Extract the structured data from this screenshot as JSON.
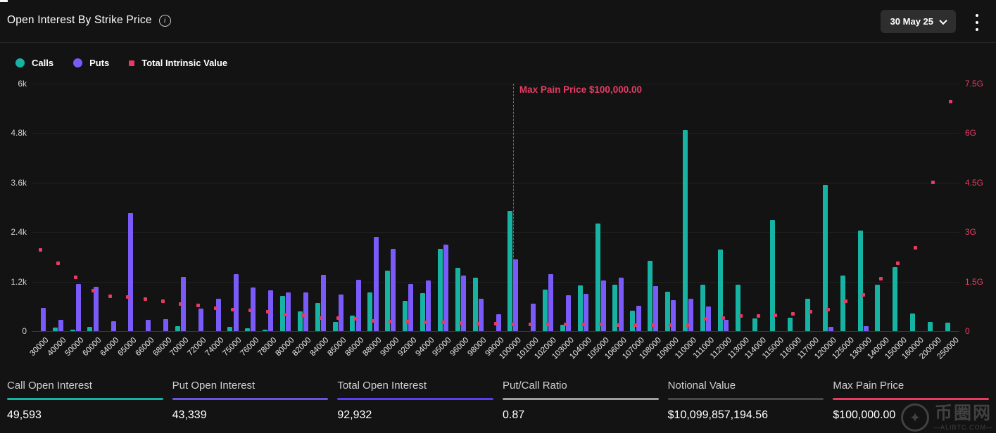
{
  "header": {
    "title": "Open Interest By Strike Price",
    "date_label": "30 May 25"
  },
  "legend": [
    {
      "label": "Calls",
      "color": "#16b2a2",
      "shape": "circle"
    },
    {
      "label": "Puts",
      "color": "#7a5af8",
      "shape": "circle"
    },
    {
      "label": "Total Intrinsic Value",
      "color": "#e63c63",
      "shape": "square"
    }
  ],
  "chart_data": {
    "type": "bar",
    "title": "Open Interest By Strike Price",
    "grid": true,
    "legend_position": "top-left",
    "categories": [
      "30000",
      "40000",
      "50000",
      "60000",
      "64000",
      "65000",
      "66000",
      "68000",
      "70000",
      "72000",
      "74000",
      "75000",
      "76000",
      "78000",
      "80000",
      "82000",
      "84000",
      "85000",
      "86000",
      "88000",
      "90000",
      "92000",
      "94000",
      "95000",
      "96000",
      "98000",
      "99000",
      "100000",
      "101000",
      "102000",
      "103000",
      "104000",
      "105000",
      "106000",
      "107000",
      "108000",
      "109000",
      "110000",
      "111000",
      "112000",
      "113000",
      "114000",
      "115000",
      "116000",
      "117000",
      "120000",
      "125000",
      "130000",
      "140000",
      "150000",
      "160000",
      "200000",
      "250000"
    ],
    "series": [
      {
        "name": "Calls",
        "type": "bar",
        "axis": "left",
        "color": "#16b2a2",
        "values": [
          0,
          85,
          30,
          100,
          0,
          0,
          0,
          0,
          120,
          0,
          0,
          110,
          60,
          30,
          850,
          480,
          690,
          215,
          370,
          930,
          1470,
          740,
          920,
          2000,
          1540,
          1300,
          0,
          2920,
          0,
          1000,
          160,
          1100,
          2610,
          1120,
          500,
          1700,
          960,
          4870,
          1120,
          1980,
          1120,
          310,
          2700,
          330,
          790,
          3540,
          1340,
          2440,
          1130,
          1550,
          430,
          220,
          200
        ]
      },
      {
        "name": "Puts",
        "type": "bar",
        "axis": "left",
        "color": "#7a5af8",
        "values": [
          560,
          270,
          1150,
          1070,
          240,
          2860,
          270,
          290,
          1320,
          540,
          790,
          1380,
          1060,
          990,
          930,
          930,
          1360,
          890,
          1240,
          2280,
          2000,
          1150,
          1220,
          2100,
          1340,
          780,
          410,
          1740,
          660,
          1380,
          870,
          910,
          1230,
          1300,
          620,
          1090,
          750,
          780,
          590,
          270,
          0,
          0,
          0,
          0,
          0,
          100,
          0,
          120,
          0,
          0,
          0,
          0,
          0
        ]
      },
      {
        "name": "Total Intrinsic Value",
        "type": "scatter",
        "axis": "right",
        "unit": "G",
        "color": "#e63c63",
        "values": [
          2.47,
          2.06,
          1.62,
          1.23,
          1.05,
          1.03,
          0.98,
          0.91,
          0.82,
          0.77,
          0.7,
          0.66,
          0.62,
          0.58,
          0.51,
          0.47,
          0.4,
          0.39,
          0.38,
          0.3,
          0.29,
          0.28,
          0.27,
          0.26,
          0.25,
          0.23,
          0.23,
          0.21,
          0.21,
          0.21,
          0.2,
          0.2,
          0.2,
          0.19,
          0.19,
          0.18,
          0.18,
          0.19,
          0.38,
          0.39,
          0.46,
          0.45,
          0.48,
          0.52,
          0.59,
          0.66,
          0.91,
          1.1,
          1.58,
          2.05,
          2.53,
          4.5,
          6.96
        ]
      }
    ],
    "left_axis": {
      "ticks_top_to_bottom": [
        "6k",
        "4.8k",
        "3.6k",
        "2.4k",
        "1.2k",
        "0"
      ],
      "max": 6000,
      "min": 0
    },
    "right_axis": {
      "ticks_top_to_bottom": [
        "7.5G",
        "6G",
        "4.5G",
        "3G",
        "1.5G",
        "0"
      ],
      "max": 7.5,
      "min": 0
    },
    "annotation": {
      "label": "Max Pain Price $100,000.00",
      "strike": "100000",
      "color": "#e63c63"
    }
  },
  "stats": [
    {
      "label": "Call Open Interest",
      "value": "49,593",
      "accent": "#16b2a2"
    },
    {
      "label": "Put Open Interest",
      "value": "43,339",
      "accent": "#6c52e0"
    },
    {
      "label": "Total Open Interest",
      "value": "92,932",
      "accent": "#5b3fee"
    },
    {
      "label": "Put/Call Ratio",
      "value": "0.87",
      "accent": "#a0a0a0"
    },
    {
      "label": "Notional Value",
      "value": "$10,099,857,194.56",
      "accent": "#484848"
    },
    {
      "label": "Max Pain Price",
      "value": "$100,000.00",
      "accent": "#e63c63"
    }
  ],
  "watermark": {
    "logo_glyph": "✦",
    "brand": "币圈网",
    "domain": "—ALIBTC.COM—"
  }
}
